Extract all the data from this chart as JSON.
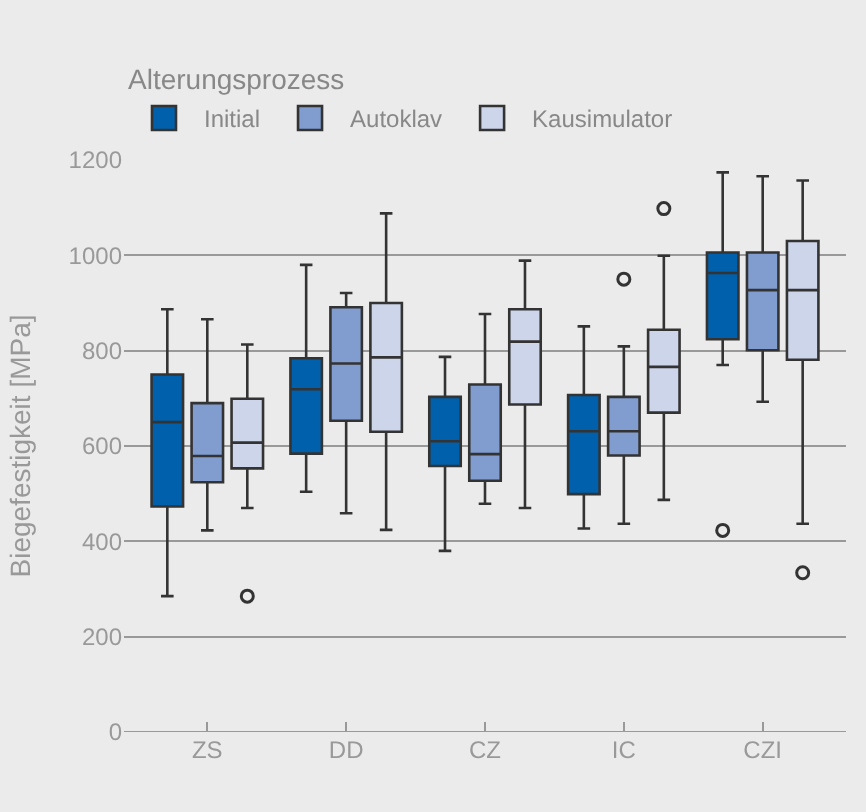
{
  "chart_data": {
    "type": "box",
    "ylabel": "Biegefestigkeit [MPa]",
    "legend_title": "Alterungsprozess",
    "categories": [
      "ZS",
      "DD",
      "CZ",
      "IC",
      "CZI"
    ],
    "ylim": [
      0,
      1200
    ],
    "yticks": [
      0,
      200,
      400,
      600,
      800,
      1000,
      1200
    ],
    "grid": "y",
    "legend": "top left",
    "series": [
      {
        "name": "Initial",
        "color": "#0060ac",
        "boxes": [
          {
            "low": 285,
            "q1": 473,
            "median": 650,
            "q3": 750,
            "high": 887
          },
          {
            "low": 504,
            "q1": 584,
            "median": 719,
            "q3": 784,
            "high": 980
          },
          {
            "low": 380,
            "q1": 558,
            "median": 610,
            "q3": 703,
            "high": 787
          },
          {
            "low": 427,
            "q1": 499,
            "median": 631,
            "q3": 707,
            "high": 851
          },
          {
            "low": 770,
            "q1": 824,
            "median": 963,
            "q3": 1006,
            "high": 1174,
            "outliers": [
              423
            ]
          }
        ]
      },
      {
        "name": "Autoklav",
        "color": "#819dcf",
        "boxes": [
          {
            "low": 423,
            "q1": 524,
            "median": 579,
            "q3": 690,
            "high": 866
          },
          {
            "low": 459,
            "q1": 653,
            "median": 773,
            "q3": 891,
            "high": 921
          },
          {
            "low": 479,
            "q1": 527,
            "median": 583,
            "q3": 729,
            "high": 877
          },
          {
            "low": 437,
            "q1": 580,
            "median": 631,
            "q3": 703,
            "high": 809,
            "outliers": [
              950
            ]
          },
          {
            "low": 693,
            "q1": 801,
            "median": 927,
            "q3": 1006,
            "high": 1166
          }
        ]
      },
      {
        "name": "Kausimulator",
        "color": "#ccd5ea",
        "boxes": [
          {
            "low": 470,
            "q1": 553,
            "median": 607,
            "q3": 699,
            "high": 813,
            "outliers": [
              285
            ]
          },
          {
            "low": 424,
            "q1": 630,
            "median": 786,
            "q3": 900,
            "high": 1088
          },
          {
            "low": 470,
            "q1": 687,
            "median": 819,
            "q3": 887,
            "high": 989
          },
          {
            "low": 487,
            "q1": 670,
            "median": 766,
            "q3": 844,
            "high": 999,
            "outliers": [
              1098
            ]
          },
          {
            "low": 437,
            "q1": 781,
            "median": 927,
            "q3": 1030,
            "high": 1157,
            "outliers": [
              334
            ]
          }
        ]
      }
    ]
  }
}
